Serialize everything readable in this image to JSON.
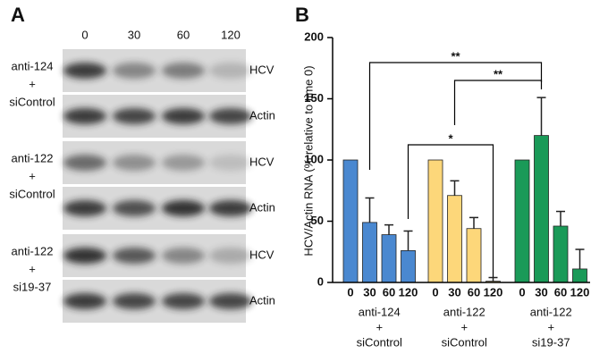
{
  "panel_a": {
    "label": "A",
    "lanes": [
      "0",
      "30",
      "60",
      "120"
    ],
    "rows": [
      {
        "treatment": [
          "anti-124",
          "+",
          "siControl"
        ],
        "bands": [
          "HCV",
          "Actin"
        ]
      },
      {
        "treatment": [
          "anti-122",
          "+",
          "siControl"
        ],
        "bands": [
          "HCV",
          "Actin"
        ]
      },
      {
        "treatment": [
          "anti-122",
          "+",
          "si19-37"
        ],
        "bands": [
          "HCV",
          "Actin"
        ]
      }
    ]
  },
  "chart_data": {
    "type": "bar",
    "label": "B",
    "ylabel": "HCV/Actin RNA (% relative to time 0)",
    "ylim": [
      0,
      200
    ],
    "yticks": [
      0,
      50,
      100,
      150,
      200
    ],
    "series": [
      {
        "name": [
          "anti-124",
          "+",
          "siControl"
        ],
        "color": "#4a88d0",
        "categories": [
          "0",
          "30",
          "60",
          "120"
        ],
        "values": [
          100,
          49,
          39,
          26
        ],
        "errors": [
          null,
          20,
          8,
          16
        ]
      },
      {
        "name": [
          "anti-122",
          "+",
          "siControl"
        ],
        "color": "#fdd77a",
        "categories": [
          "0",
          "30",
          "60",
          "120"
        ],
        "values": [
          100,
          71,
          44,
          1
        ],
        "errors": [
          null,
          12,
          9,
          3
        ]
      },
      {
        "name": [
          "anti-122",
          "+",
          "si19-37"
        ],
        "color": "#1a9a58",
        "categories": [
          "0",
          "30",
          "60",
          "120"
        ],
        "values": [
          100,
          120,
          46,
          11
        ],
        "errors": [
          null,
          31,
          12,
          16
        ]
      }
    ],
    "annotations": [
      {
        "text": "**"
      },
      {
        "text": "**"
      },
      {
        "text": "*"
      }
    ]
  }
}
